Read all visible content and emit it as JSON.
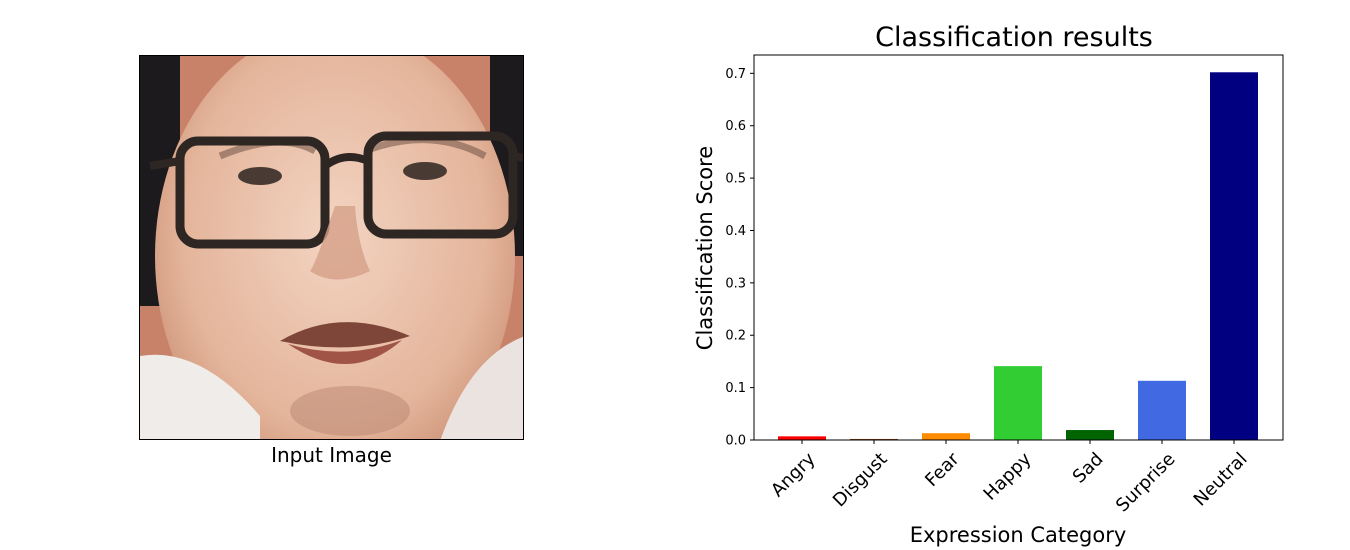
{
  "figure": {
    "image_caption": "Input Image"
  },
  "chart_data": {
    "type": "bar",
    "title": "Classification results",
    "xlabel": "Expression Category",
    "ylabel": "Classification Score",
    "categories": [
      "Angry",
      "Disgust",
      "Fear",
      "Happy",
      "Sad",
      "Surprise",
      "Neutral"
    ],
    "values": [
      0.007,
      0.002,
      0.013,
      0.141,
      0.019,
      0.113,
      0.702
    ],
    "colors": [
      "#ff0000",
      "#8b4513",
      "#ff8c00",
      "#32cd32",
      "#006400",
      "#4169e1",
      "#000080"
    ],
    "ylim": [
      0,
      0.735
    ],
    "yticks": [
      "0.0",
      "0.1",
      "0.2",
      "0.3",
      "0.4",
      "0.5",
      "0.6",
      "0.7"
    ],
    "grid": false,
    "legend": "none"
  }
}
